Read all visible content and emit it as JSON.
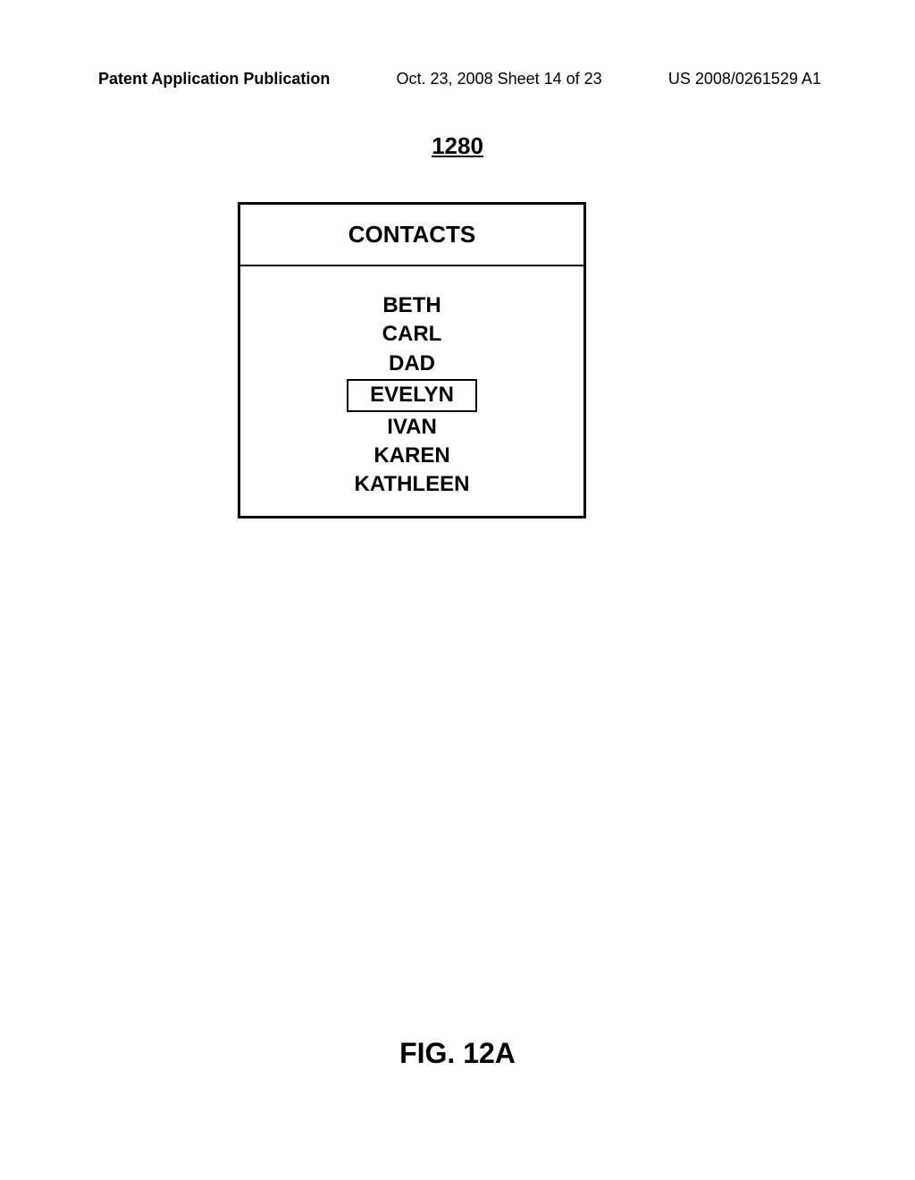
{
  "header": {
    "left": "Patent Application Publication",
    "center": "Oct. 23, 2008  Sheet 14 of 23",
    "right": "US 2008/0261529 A1"
  },
  "reference_number": "1280",
  "contacts_panel": {
    "title": "CONTACTS",
    "items": [
      {
        "name": "BETH",
        "selected": false
      },
      {
        "name": "CARL",
        "selected": false
      },
      {
        "name": "DAD",
        "selected": false
      },
      {
        "name": "EVELYN",
        "selected": true
      },
      {
        "name": "IVAN",
        "selected": false
      },
      {
        "name": "KAREN",
        "selected": false
      },
      {
        "name": "KATHLEEN",
        "selected": false
      }
    ]
  },
  "figure_label": "FIG. 12A",
  "styling": {
    "background_color": "#ffffff",
    "text_color": "#000000",
    "border_color": "#000000",
    "border_width": 3,
    "header_fontsize": 18,
    "reference_fontsize": 26,
    "contacts_title_fontsize": 26,
    "contact_item_fontsize": 24,
    "figure_label_fontsize": 32
  }
}
